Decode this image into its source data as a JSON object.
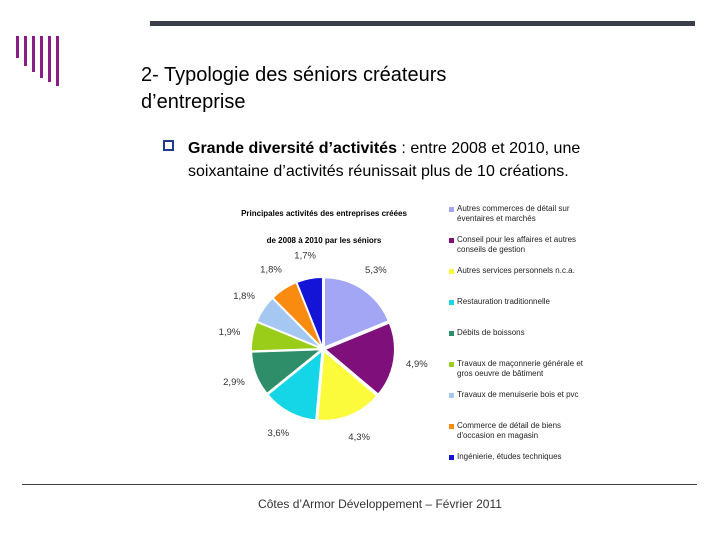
{
  "slide": {
    "title_line1": "2- Typologie des séniors créateurs",
    "title_line2": "d’entreprise",
    "bullet_bold": "Grande diversité d’activités",
    "bullet_rest": " : entre 2008 et 2010, une",
    "bullet_line2": "soixantaine d’activités réunissait plus de 10 créations.",
    "footer": "Côtes d’Armor Développement – Février 2011"
  },
  "chart_data": {
    "type": "pie",
    "title": "Principales activités des entreprises créées de 2008 à 2010 par les séniors",
    "title_line1": "Principales activités des entreprises créées",
    "title_line2": "de 2008 à 2010 par les séniors",
    "categories": [
      "Autres commerces de détail sur éventaires et marchés",
      "Conseil pour les affaires et autres conseils de gestion",
      "Autres services personnels n.c.a.",
      "Restauration traditionnelle",
      "Débits de boissons",
      "Travaux de maçonnerie générale et gros oeuvre de bâtiment",
      "Travaux de menuiserie bois et pvc",
      "Commerce de détail de biens d'occasion en magasin",
      "Ingénierie, études techniques"
    ],
    "legend_lines": [
      [
        "Autres commerces de détail sur",
        "éventaires et marchés"
      ],
      [
        "Conseil pour les affaires et autres",
        "conseils de gestion"
      ],
      [
        "Autres services personnels n.c.a."
      ],
      [
        "Restauration traditionnelle"
      ],
      [
        "Débits de boissons"
      ],
      [
        "Travaux de maçonnerie générale et",
        "gros oeuvre de bâtiment"
      ],
      [
        "Travaux de menuiserie bois et pvc"
      ],
      [
        "Commerce de détail de biens",
        "d'occasion en magasin"
      ],
      [
        "Ingénierie, études techniques"
      ]
    ],
    "values": [
      5.3,
      4.9,
      4.3,
      3.6,
      2.9,
      1.9,
      1.8,
      1.8,
      1.7
    ],
    "labels": [
      "5,3%",
      "4,9%",
      "4,3%",
      "3,6%",
      "2,9%",
      "1,9%",
      "1,8%",
      "1,8%",
      "1,7%"
    ],
    "colors": [
      "#a3a6f5",
      "#7f0f7a",
      "#fbfb3b",
      "#15d6e6",
      "#2e8e6a",
      "#9acd1a",
      "#a5c8f2",
      "#f98b10",
      "#1414d6"
    ],
    "legend_placement": "right"
  }
}
